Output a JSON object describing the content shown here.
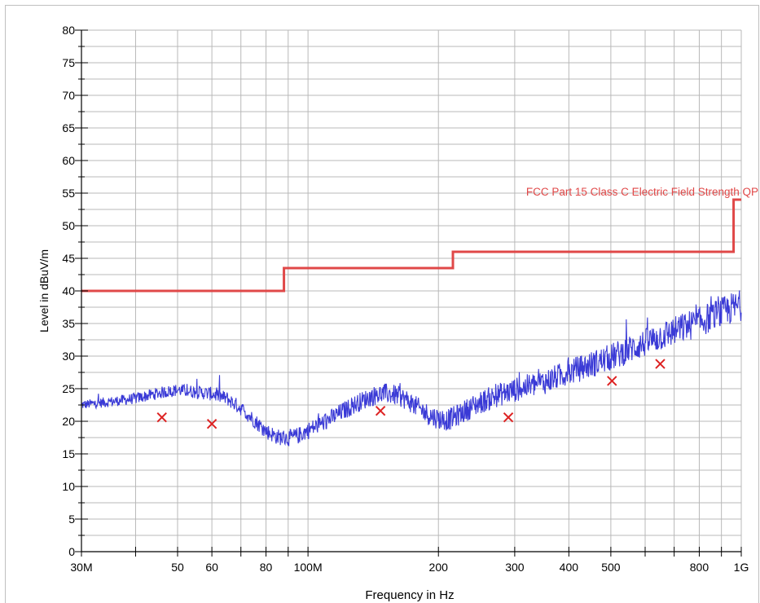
{
  "chart_data": {
    "type": "line",
    "xlabel": "Frequency in Hz",
    "ylabel": "Level in dBuV/m",
    "x_scale": "log",
    "xlim": [
      30000000,
      1000000000
    ],
    "ylim": [
      0,
      80
    ],
    "y_major_ticks": [
      0,
      5,
      10,
      15,
      20,
      25,
      30,
      35,
      40,
      45,
      50,
      55,
      60,
      65,
      70,
      75,
      80
    ],
    "y_minor_step": 2.5,
    "x_ticks": [
      {
        "value": 30000000,
        "label": "30M"
      },
      {
        "value": 50000000,
        "label": "50"
      },
      {
        "value": 60000000,
        "label": "60"
      },
      {
        "value": 80000000,
        "label": "80"
      },
      {
        "value": 100000000,
        "label": "100M"
      },
      {
        "value": 200000000,
        "label": "200"
      },
      {
        "value": 300000000,
        "label": "300"
      },
      {
        "value": 400000000,
        "label": "400"
      },
      {
        "value": 500000000,
        "label": "500"
      },
      {
        "value": 800000000,
        "label": "800"
      },
      {
        "value": 1000000000,
        "label": "1G"
      }
    ],
    "x_grid": [
      30000000,
      40000000,
      50000000,
      60000000,
      70000000,
      80000000,
      90000000,
      100000000,
      200000000,
      300000000,
      400000000,
      500000000,
      600000000,
      700000000,
      800000000,
      900000000,
      1000000000
    ],
    "grid": true,
    "limit_line": {
      "name": "FCC Part 15 Class C Electric Field Strength QP",
      "color": "#e04848",
      "points": [
        [
          30000000,
          40
        ],
        [
          88000000,
          40
        ],
        [
          88000000,
          43.5
        ],
        [
          216000000,
          43.5
        ],
        [
          216000000,
          46
        ],
        [
          960000000,
          46
        ],
        [
          960000000,
          54
        ],
        [
          1000000000,
          54
        ]
      ]
    },
    "measurement_trace": {
      "color": "#3a3ad6",
      "points": [
        [
          30000000,
          22.5
        ],
        [
          35000000,
          23
        ],
        [
          40000000,
          23.5
        ],
        [
          45000000,
          24.3
        ],
        [
          50000000,
          24.8
        ],
        [
          55000000,
          24.5
        ],
        [
          60000000,
          24.2
        ],
        [
          65000000,
          23.5
        ],
        [
          70000000,
          22
        ],
        [
          75000000,
          20.2
        ],
        [
          80000000,
          18.5
        ],
        [
          85000000,
          17.6
        ],
        [
          90000000,
          17.4
        ],
        [
          95000000,
          17.8
        ],
        [
          100000000,
          18.6
        ],
        [
          110000000,
          20
        ],
        [
          120000000,
          21.5
        ],
        [
          130000000,
          22.8
        ],
        [
          140000000,
          23.8
        ],
        [
          150000000,
          24.3
        ],
        [
          160000000,
          24
        ],
        [
          170000000,
          23.2
        ],
        [
          180000000,
          22
        ],
        [
          190000000,
          21
        ],
        [
          200000000,
          20.4
        ],
        [
          210000000,
          20.2
        ],
        [
          220000000,
          20.8
        ],
        [
          240000000,
          22.3
        ],
        [
          260000000,
          23.4
        ],
        [
          280000000,
          24.2
        ],
        [
          300000000,
          24.8
        ],
        [
          350000000,
          26
        ],
        [
          400000000,
          27.5
        ],
        [
          450000000,
          28.7
        ],
        [
          500000000,
          29.8
        ],
        [
          550000000,
          31
        ],
        [
          600000000,
          32
        ],
        [
          650000000,
          33
        ],
        [
          700000000,
          33.8
        ],
        [
          750000000,
          34.6
        ],
        [
          800000000,
          35.2
        ],
        [
          850000000,
          36
        ],
        [
          900000000,
          36.6
        ],
        [
          950000000,
          37.3
        ],
        [
          1000000000,
          37.8
        ]
      ]
    },
    "qp_markers": {
      "color": "#dd2222",
      "points": [
        [
          46000000,
          20.6
        ],
        [
          60000000,
          19.6
        ],
        [
          147000000,
          21.6
        ],
        [
          290000000,
          20.6
        ],
        [
          503000000,
          26.2
        ],
        [
          650000000,
          28.8
        ]
      ]
    }
  }
}
